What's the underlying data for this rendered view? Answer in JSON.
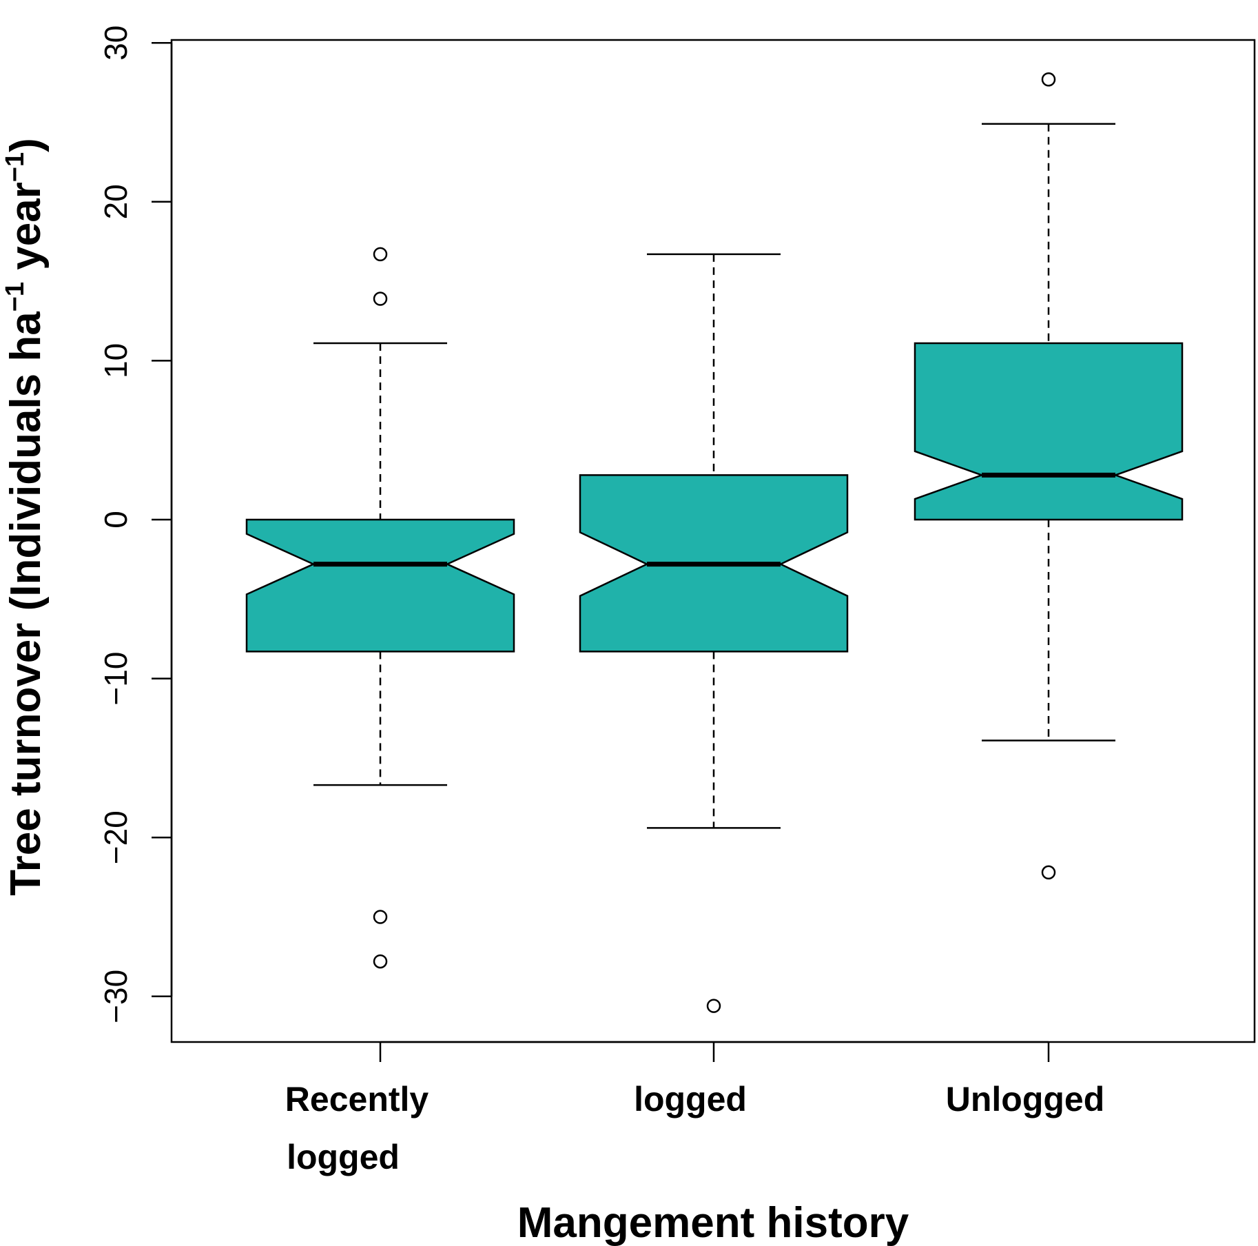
{
  "chart_data": {
    "type": "boxplot",
    "notched": true,
    "xlabel": "Mangement history",
    "ylabel": {
      "main": "Tree turnover (Individuals ha",
      "sup1": "−1",
      "mid": " year",
      "sup2": "−1",
      "end": ")"
    },
    "ylim": [
      -33,
      30
    ],
    "yticks": [
      30,
      20,
      10,
      0,
      -10,
      -20,
      -30
    ],
    "ytick_labels": [
      "30",
      "20",
      "10",
      "0",
      "−10",
      "−20",
      "−30"
    ],
    "fill_color": "#20b2aa",
    "categories": [
      {
        "lines": [
          "Recently",
          "logged"
        ]
      },
      {
        "lines": [
          "logged"
        ]
      },
      {
        "lines": [
          "Unlogged"
        ]
      }
    ],
    "boxes": [
      {
        "whisker_low": -16.7,
        "q1": -8.3,
        "notch_low": -4.7,
        "median": -2.8,
        "notch_high": -0.9,
        "q3": 0.0,
        "whisker_high": 11.1,
        "outliers": [
          16.7,
          13.9,
          -25.0,
          -27.8
        ]
      },
      {
        "whisker_low": -19.4,
        "q1": -8.3,
        "notch_low": -4.8,
        "median": -2.8,
        "notch_high": -0.8,
        "q3": 2.8,
        "whisker_high": 16.7,
        "outliers": [
          -30.6
        ]
      },
      {
        "whisker_low": -13.9,
        "q1": 0.0,
        "notch_low": 1.3,
        "median": 2.8,
        "notch_high": 4.3,
        "q3": 11.1,
        "whisker_high": 24.9,
        "outliers": [
          27.7,
          -22.2
        ]
      }
    ]
  }
}
